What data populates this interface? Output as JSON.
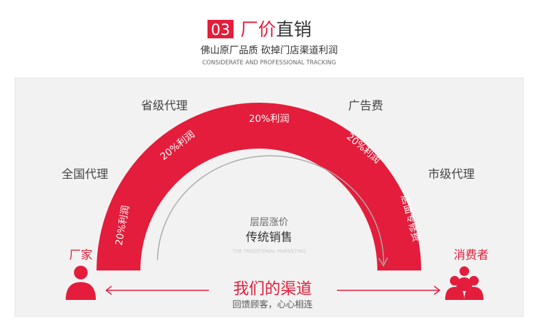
{
  "header": {
    "number": "03",
    "title_red": "厂价",
    "title_dark": "直销",
    "subtitle": "佛山原厂品质 砍掉门店渠道利润",
    "english": "CONSIDERATE AND PROFESSIONAL TRACKING"
  },
  "arch": {
    "segments": [
      "20%利润",
      "20%利润",
      "20%利润",
      "20%利润",
      "店面专修费"
    ]
  },
  "labels": {
    "national": "全国代理",
    "provincial": "省级代理",
    "advertising": "广告费",
    "city": "市级代理",
    "factory": "厂家",
    "consumer": "消费者"
  },
  "center": {
    "small": "层层涨价",
    "main": "传统销售",
    "english": "THE TRADITIONAL MARKETING"
  },
  "bottom": {
    "title": "我们的渠道",
    "subtitle": "回馈顾客，心心相连"
  },
  "colors": {
    "accent": "#e31d3b",
    "panel": "#f2f2f2"
  }
}
